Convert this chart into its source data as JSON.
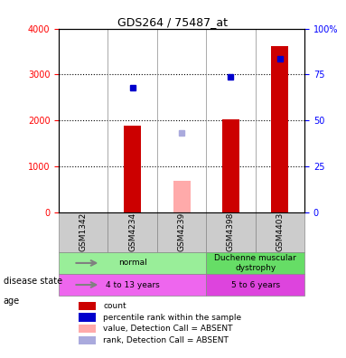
{
  "title": "GDS264 / 75487_at",
  "samples": [
    "GSM1342",
    "GSM4234",
    "GSM4239",
    "GSM4398",
    "GSM4403"
  ],
  "bar_values": [
    0,
    1880,
    0,
    2020,
    3620
  ],
  "bar_colors_red": [
    "#cc0000",
    "#cc0000",
    "#cc0000",
    "#cc0000",
    "#cc0000"
  ],
  "absent_bar_values": [
    0,
    0,
    680,
    0,
    0
  ],
  "absent_bar_color": "#ffaaaa",
  "blue_dot_values": [
    0,
    2720,
    0,
    2950,
    3350
  ],
  "blue_dot_color": "#0000cc",
  "absent_rank_values": [
    0,
    0,
    1720,
    0,
    0
  ],
  "absent_rank_color": "#aaaadd",
  "ylim_left": [
    0,
    4000
  ],
  "ylim_right": [
    0,
    100
  ],
  "yticks_left": [
    0,
    1000,
    2000,
    3000,
    4000
  ],
  "yticks_right": [
    0,
    25,
    50,
    75,
    100
  ],
  "ytick_labels_left": [
    "0",
    "1000",
    "2000",
    "3000",
    "4000"
  ],
  "ytick_labels_right": [
    "0",
    "25",
    "50",
    "75",
    "100%"
  ],
  "disease_state_groups": [
    {
      "label": "normal",
      "start": 0,
      "end": 3,
      "color": "#99ee99"
    },
    {
      "label": "Duchenne muscular\ndystrophy",
      "start": 3,
      "end": 5,
      "color": "#66dd66"
    }
  ],
  "age_groups": [
    {
      "label": "4 to 13 years",
      "start": 0,
      "end": 3,
      "color": "#ee66ee"
    },
    {
      "label": "5 to 6 years",
      "start": 3,
      "end": 5,
      "color": "#dd44dd"
    }
  ],
  "legend_items": [
    {
      "label": "count",
      "color": "#cc0000",
      "marker": "s"
    },
    {
      "label": "percentile rank within the sample",
      "color": "#0000cc",
      "marker": "s"
    },
    {
      "label": "value, Detection Call = ABSENT",
      "color": "#ffaaaa",
      "marker": "s"
    },
    {
      "label": "rank, Detection Call = ABSENT",
      "color": "#aaaadd",
      "marker": "s"
    }
  ],
  "label_fontsize": 7.5,
  "tick_fontsize": 7,
  "bar_width": 0.35,
  "x_positions": [
    0,
    1,
    2,
    3,
    4
  ]
}
